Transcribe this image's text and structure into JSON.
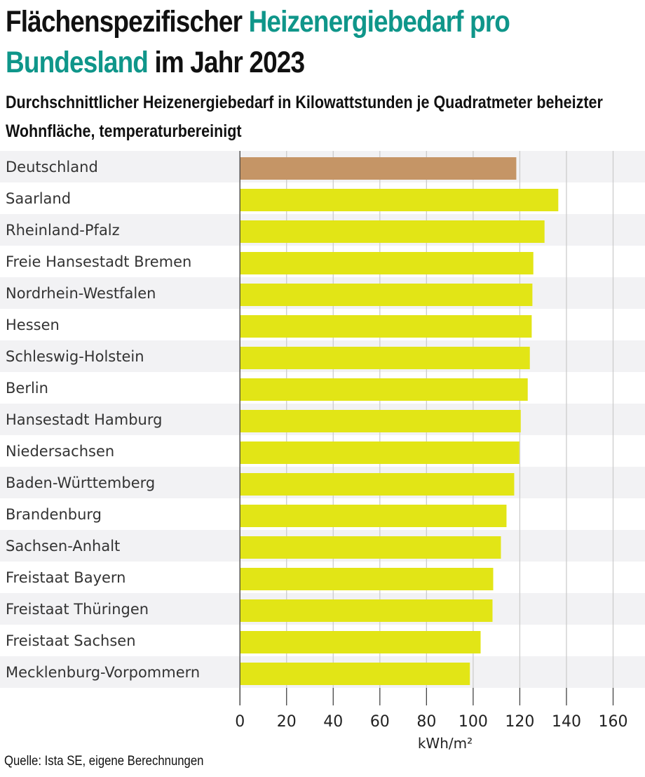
{
  "title": {
    "part1": "Flächenspezifischer ",
    "highlight": "Heizenergiebedarf pro Bundesland",
    "part2": " im Jahr 2023"
  },
  "subtitle": "Durchschnittlicher Heizenergiebedarf in Kilowattstunden je Quadratmeter beheizter Wohnfläche, temperaturbereinigt",
  "source": "Quelle: Ista SE, eigene Berechnungen",
  "colors": {
    "highlight": "#0f968a",
    "bar": "#e2e516",
    "bar_highlight": "#c59566",
    "band": "#f2f2f4",
    "grid": "#cccccc"
  },
  "chart_data": {
    "type": "bar",
    "orientation": "horizontal",
    "categories": [
      "Deutschland",
      "Saarland",
      "Rheinland-Pfalz",
      "Freie Hansestadt Bremen",
      "Nordrhein-Westfalen",
      "Hessen",
      "Schleswig-Holstein",
      "Berlin",
      "Hansestadt Hamburg",
      "Niedersachsen",
      "Baden-Württemberg",
      "Brandenburg",
      "Sachsen-Anhalt",
      "Freistaat Bayern",
      "Freistaat Thüringen",
      "Freistaat Sachsen",
      "Mecklenburg-Vorpommern"
    ],
    "values": [
      118.5,
      136.5,
      130.6,
      125.8,
      125.4,
      125.1,
      124.3,
      123.4,
      120.4,
      119.8,
      117.6,
      114.3,
      111.9,
      108.6,
      108.3,
      103.2,
      98.6
    ],
    "highlighted_category": "Deutschland",
    "xlabel": "kWh/m²",
    "xlim": [
      0,
      160
    ],
    "xticks": [
      "0",
      "20",
      "40",
      "60",
      "80",
      "100",
      "120",
      "140",
      "160"
    ],
    "grid": true
  }
}
